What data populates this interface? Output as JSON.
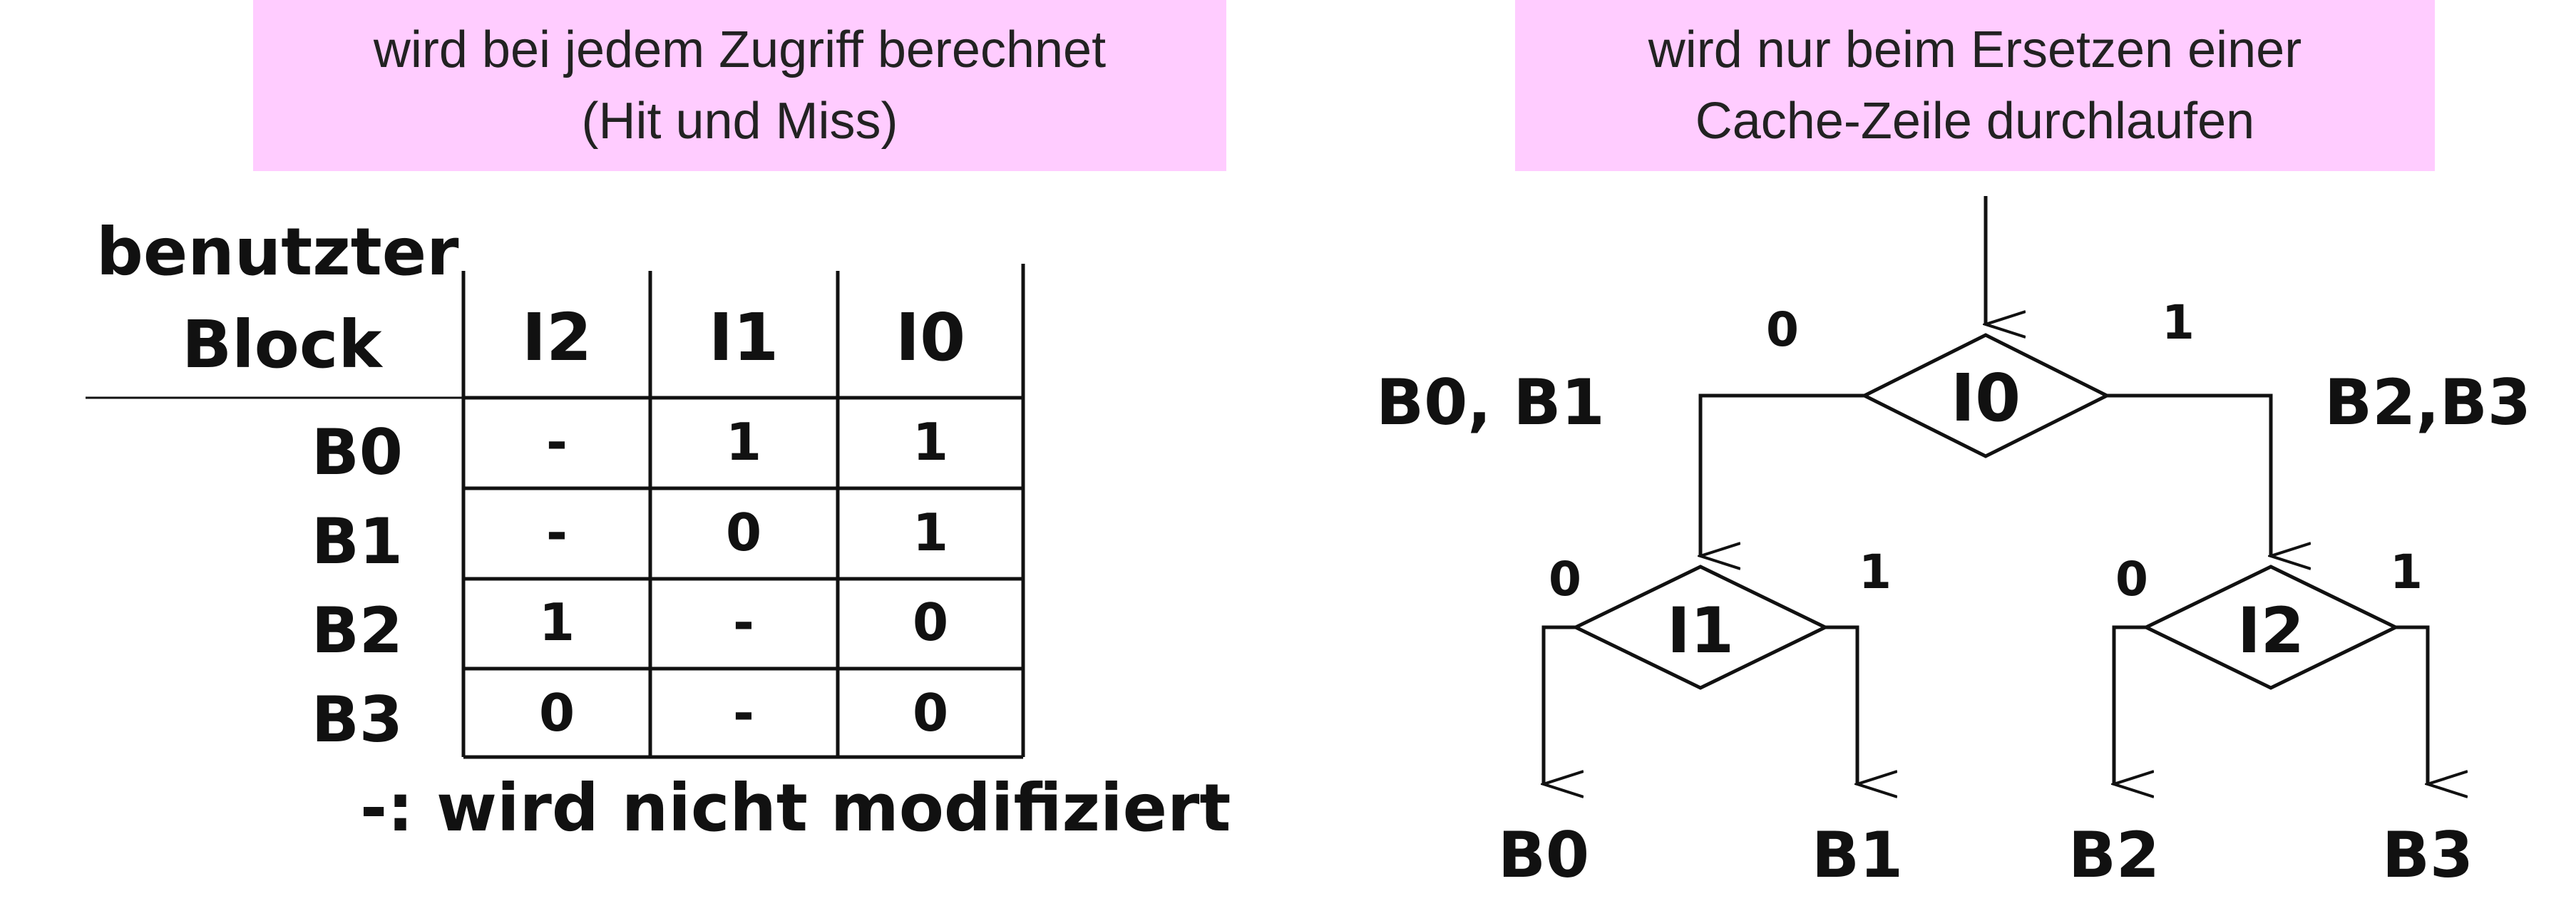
{
  "notes": {
    "left": {
      "line1": "wird bei jedem Zugriff berechnet",
      "line2": "(Hit und Miss)"
    },
    "right": {
      "line1": "wird nur beim Ersetzen einer",
      "line2": "Cache-Zeile durchlaufen"
    }
  },
  "table": {
    "header_line1": "benutzter",
    "header_line2": "Block",
    "columns": [
      "I2",
      "I1",
      "I0"
    ],
    "rows": [
      {
        "block": "B0",
        "values": [
          "-",
          "1",
          "1"
        ]
      },
      {
        "block": "B1",
        "values": [
          "-",
          "0",
          "1"
        ]
      },
      {
        "block": "B2",
        "values": [
          "1",
          "-",
          "0"
        ]
      },
      {
        "block": "B3",
        "values": [
          "0",
          "-",
          "0"
        ]
      }
    ],
    "legend": "-: wird nicht modifiziert"
  },
  "tree": {
    "root": {
      "label": "I0",
      "left_edge": "0",
      "right_edge": "1",
      "left_group": "B0, B1",
      "right_group": "B2,B3"
    },
    "left_node": {
      "label": "I1",
      "left_edge": "0",
      "right_edge": "1",
      "left_leaf": "B0",
      "right_leaf": "B1"
    },
    "right_node": {
      "label": "I2",
      "left_edge": "0",
      "right_edge": "1",
      "left_leaf": "B2",
      "right_leaf": "B3"
    }
  }
}
